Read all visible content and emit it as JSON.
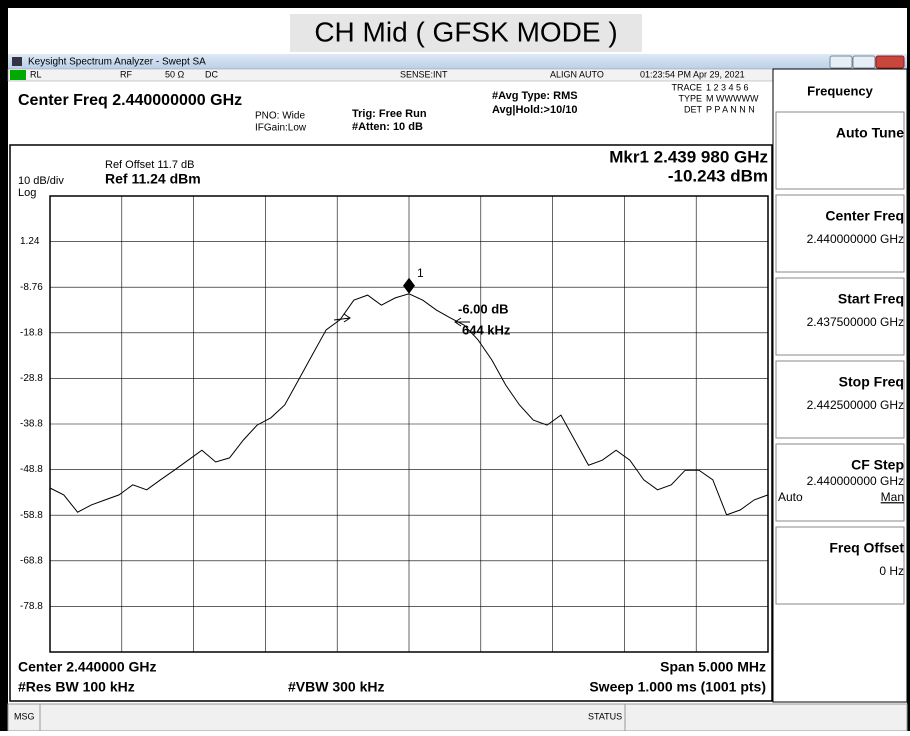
{
  "header": {
    "title": "CH Mid ( GFSK MODE )"
  },
  "window": {
    "title": "Keysight Spectrum Analyzer - Swept SA"
  },
  "status": {
    "rl": "RL",
    "rf": "RF",
    "impedance": "50 Ω",
    "coupling": "DC",
    "sense": "SENSE:INT",
    "align": "ALIGN AUTO",
    "time": "01:23:54 PM Apr 29, 2021",
    "center": "Center Freq 2.440000000 GHz",
    "pno": "PNO: Wide",
    "ifgain": "IFGain:Low",
    "trig": "Trig: Free Run",
    "atten": "#Atten: 10 dB",
    "avg_type": "#Avg Type: RMS",
    "avg_hold": "Avg|Hold:>10/10",
    "trace_labels": [
      "TRACE",
      "TYPE",
      "DET"
    ],
    "trace_rows": [
      "1 2 3 4 5 6",
      "M WWWWW",
      "P P A N N N"
    ]
  },
  "plot": {
    "ref_offset": "Ref Offset 11.7 dB",
    "scale": "10 dB/div",
    "ref": "Ref 11.24 dBm",
    "log": "Log",
    "marker_freq": "Mkr1 2.439 980 GHz",
    "marker_level": "-10.243 dBm",
    "marker_label": "1",
    "ndb": "-6.00 dB",
    "bw": "644 kHz",
    "ylim": [
      -88.76,
      11.24
    ],
    "yticks": [
      1.24,
      -8.76,
      {
        "value": -18.76,
        "label": "-18.8"
      },
      {
        "value": -28.76,
        "label": "-28.8"
      },
      {
        "value": -38.76,
        "label": "-38.8"
      },
      {
        "value": -48.76,
        "label": "-48.8"
      },
      {
        "value": -58.76,
        "label": "-58.8"
      },
      {
        "value": -68.76,
        "label": "-68.8"
      },
      {
        "value": -78.76,
        "label": "-78.8"
      }
    ],
    "trace": [
      -52.8,
      -54.3,
      -58.1,
      -56.5,
      -55.4,
      -54.3,
      -52.1,
      -53.2,
      -51.0,
      -48.9,
      -46.7,
      -44.5,
      -47.1,
      -46.2,
      -42.3,
      -39.0,
      -37.4,
      -34.6,
      -29.1,
      -23.6,
      -18.1,
      -15.9,
      -11.6,
      -10.5,
      -12.7,
      -11.1,
      -10.2,
      -11.6,
      -13.8,
      -15.5,
      -17.1,
      -20.3,
      -24.7,
      -30.2,
      -34.6,
      -37.9,
      -39.0,
      -36.8,
      -42.3,
      -47.8,
      -46.7,
      -44.5,
      -46.7,
      -51.0,
      -53.2,
      -52.1,
      -48.9,
      -48.9,
      -51.0,
      -58.7,
      -57.6,
      -55.4,
      -54.3
    ],
    "center": "Center 2.440000 GHz",
    "span": "Span 5.000 MHz",
    "rbw": "#Res BW 100 kHz",
    "vbw": "#VBW 300 kHz",
    "sweep": "Sweep  1.000 ms (1001 pts)"
  },
  "softkeys": {
    "menu": "Frequency",
    "keys": [
      {
        "label": "Auto Tune"
      },
      {
        "label": "Center Freq",
        "value": "2.440000000 GHz"
      },
      {
        "label": "Start Freq",
        "value": "2.437500000 GHz"
      },
      {
        "label": "Stop Freq",
        "value": "2.442500000 GHz"
      },
      {
        "label": "CF Step",
        "value": "2.440000000 GHz",
        "auto": "Auto",
        "man": "Man"
      },
      {
        "label": "Freq Offset",
        "value": "0 Hz"
      }
    ]
  },
  "footer": {
    "msg": "MSG",
    "status": "STATUS"
  }
}
